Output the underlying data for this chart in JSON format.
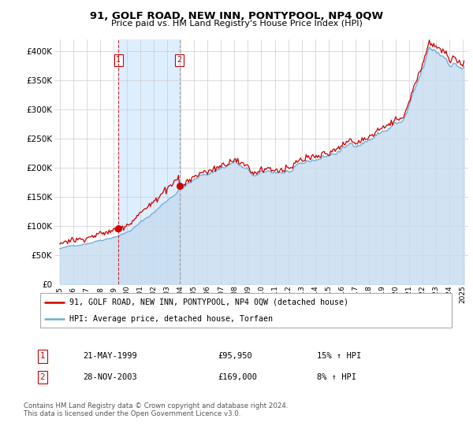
{
  "title": "91, GOLF ROAD, NEW INN, PONTYPOOL, NP4 0QW",
  "subtitle": "Price paid vs. HM Land Registry's House Price Index (HPI)",
  "legend_line1": "91, GOLF ROAD, NEW INN, PONTYPOOL, NP4 0QW (detached house)",
  "legend_line2": "HPI: Average price, detached house, Torfaen",
  "footer": "Contains HM Land Registry data © Crown copyright and database right 2024.\nThis data is licensed under the Open Government Licence v3.0.",
  "sale1_label": "1",
  "sale1_date": "21-MAY-1999",
  "sale1_price": "£95,950",
  "sale1_hpi": "15% ↑ HPI",
  "sale1_x": 1999.38,
  "sale1_y": 95950,
  "sale2_label": "2",
  "sale2_date": "28-NOV-2003",
  "sale2_price": "£169,000",
  "sale2_hpi": "8% ↑ HPI",
  "sale2_x": 2003.9,
  "sale2_y": 169000,
  "hpi_line_color": "#6baed6",
  "hpi_fill_color": "#c6dbef",
  "price_color": "#cc0000",
  "shade_color": "#ddeeff",
  "ylim": [
    0,
    420000
  ],
  "yticks": [
    0,
    50000,
    100000,
    150000,
    200000,
    250000,
    300000,
    350000,
    400000
  ],
  "xlim_start": 1994.6,
  "xlim_end": 2025.4
}
